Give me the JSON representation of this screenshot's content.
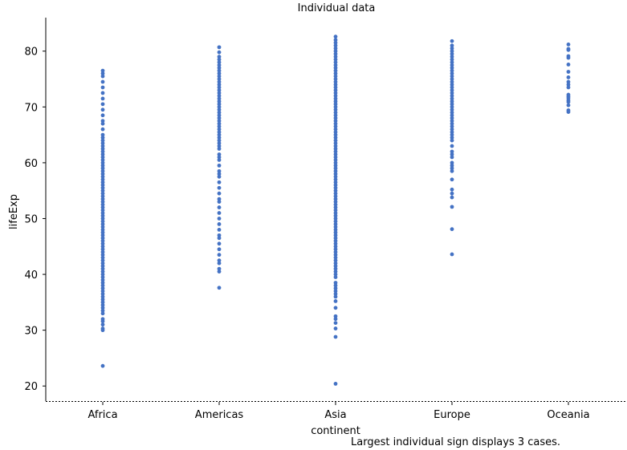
{
  "chart_data": {
    "type": "scatter",
    "title": "Individual data",
    "xlabel": "continent",
    "ylabel": "lifeExp",
    "categories": [
      "Africa",
      "Americas",
      "Asia",
      "Europe",
      "Oceania"
    ],
    "ylim": [
      17.3,
      86
    ],
    "yticks": [
      20,
      30,
      40,
      50,
      60,
      70,
      80
    ],
    "grid": false,
    "color": "#4472c4",
    "footnote": "Largest individual sign displays 3 cases.",
    "series": [
      {
        "category": "Africa",
        "values": [
          23.6,
          30.0,
          30.3,
          31.0,
          31.6,
          32.0,
          33.0,
          33.5,
          34.0,
          34.5,
          35.0,
          35.5,
          36.0,
          36.5,
          37.0,
          37.5,
          38.0,
          38.5,
          39.0,
          39.5,
          40.0,
          40.5,
          41.0,
          41.5,
          42.0,
          42.5,
          43.0,
          43.5,
          44.0,
          44.5,
          45.0,
          45.5,
          46.0,
          46.5,
          47.0,
          47.5,
          48.0,
          48.5,
          49.0,
          49.5,
          50.0,
          50.5,
          51.0,
          51.5,
          52.0,
          52.5,
          53.0,
          53.5,
          54.0,
          54.5,
          55.0,
          55.5,
          56.0,
          56.5,
          57.0,
          57.5,
          58.0,
          58.5,
          59.0,
          59.5,
          60.0,
          60.5,
          61.0,
          61.5,
          62.0,
          62.5,
          63.0,
          63.5,
          64.0,
          64.5,
          65.0,
          66.0,
          67.0,
          67.5,
          68.5,
          69.5,
          70.5,
          71.5,
          72.5,
          73.5,
          74.5,
          75.5,
          76.0,
          76.5
        ]
      },
      {
        "category": "Americas",
        "values": [
          37.6,
          40.5,
          41.0,
          42.0,
          42.5,
          43.5,
          44.5,
          45.5,
          46.5,
          47.0,
          48.0,
          49.0,
          50.0,
          51.0,
          52.0,
          53.0,
          53.5,
          54.5,
          55.5,
          56.5,
          57.5,
          58.0,
          58.5,
          59.5,
          60.5,
          61.0,
          61.5,
          62.5,
          63.0,
          63.5,
          64.0,
          64.5,
          65.0,
          65.5,
          66.0,
          66.5,
          67.0,
          67.5,
          68.0,
          68.5,
          69.0,
          69.5,
          70.0,
          70.5,
          71.0,
          71.5,
          72.0,
          72.5,
          73.0,
          73.5,
          74.0,
          74.5,
          75.0,
          75.5,
          76.0,
          76.5,
          77.0,
          77.5,
          78.0,
          78.5,
          79.0,
          79.8,
          80.7
        ]
      },
      {
        "category": "Asia",
        "values": [
          20.4,
          28.8,
          30.3,
          31.3,
          32.0,
          32.5,
          34.0,
          35.2,
          36.0,
          36.5,
          37.0,
          37.5,
          38.0,
          38.5,
          39.5,
          40.0,
          40.5,
          41.0,
          41.5,
          42.0,
          42.5,
          43.0,
          43.5,
          44.0,
          44.5,
          45.0,
          45.5,
          46.0,
          46.5,
          47.0,
          47.5,
          48.0,
          48.5,
          49.0,
          49.5,
          50.0,
          50.5,
          51.0,
          51.5,
          52.0,
          52.5,
          53.0,
          53.5,
          54.0,
          54.5,
          55.0,
          55.5,
          56.0,
          56.5,
          57.0,
          57.5,
          58.0,
          58.5,
          59.0,
          59.5,
          60.0,
          60.5,
          61.0,
          61.5,
          62.0,
          62.5,
          63.0,
          63.5,
          64.0,
          64.5,
          65.0,
          65.5,
          66.0,
          66.5,
          67.0,
          67.5,
          68.0,
          68.5,
          69.0,
          69.5,
          70.0,
          70.5,
          71.0,
          71.5,
          72.0,
          72.5,
          73.0,
          73.5,
          74.0,
          74.5,
          75.0,
          75.5,
          76.0,
          76.5,
          77.0,
          77.5,
          78.0,
          78.5,
          79.0,
          79.5,
          80.0,
          80.5,
          81.0,
          81.5,
          82.0,
          82.6
        ]
      },
      {
        "category": "Europe",
        "values": [
          43.6,
          48.1,
          52.1,
          53.8,
          54.5,
          55.2,
          57.0,
          58.5,
          59.0,
          59.5,
          60.0,
          61.0,
          61.5,
          62.0,
          63.0,
          64.0,
          64.5,
          65.0,
          65.5,
          66.0,
          66.5,
          67.0,
          67.5,
          68.0,
          68.5,
          69.0,
          69.5,
          70.0,
          70.5,
          71.0,
          71.5,
          72.0,
          72.5,
          73.0,
          73.5,
          74.0,
          74.5,
          75.0,
          75.5,
          76.0,
          76.5,
          77.0,
          77.5,
          78.0,
          78.5,
          79.0,
          79.5,
          80.0,
          80.5,
          81.0,
          81.8
        ]
      },
      {
        "category": "Oceania",
        "values": [
          69.1,
          69.4,
          70.3,
          70.9,
          71.2,
          71.6,
          71.9,
          72.2,
          73.5,
          74.0,
          74.5,
          75.3,
          76.3,
          77.6,
          78.8,
          79.1,
          80.2,
          80.4,
          81.2
        ]
      }
    ]
  }
}
